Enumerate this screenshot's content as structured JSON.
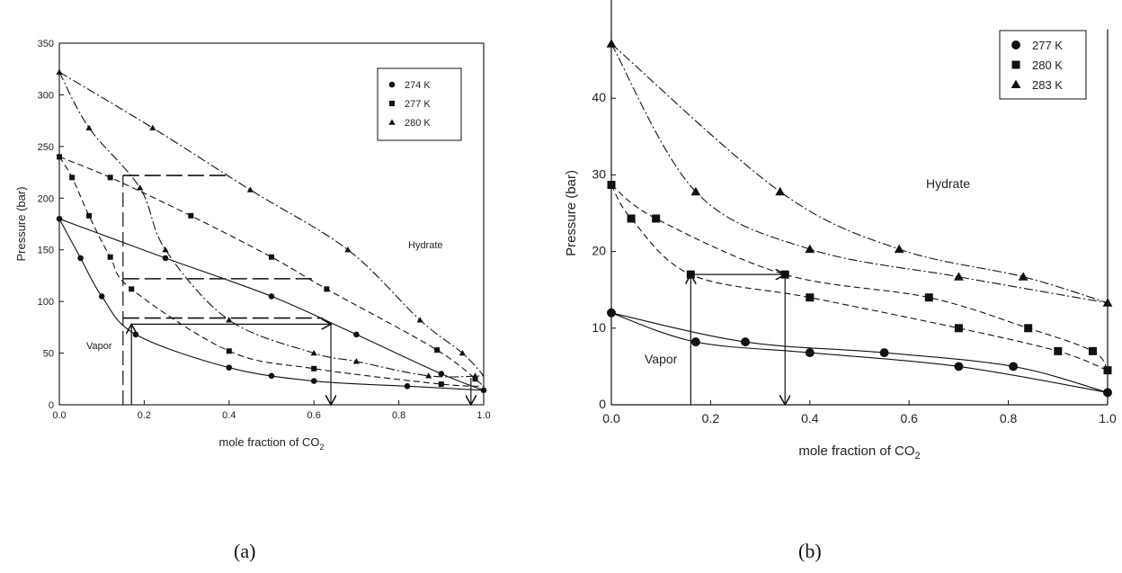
{
  "captions": {
    "a": "(a)",
    "b": "(b)"
  },
  "chart_data": [
    {
      "type": "line",
      "panel": "a",
      "title": "",
      "xlabel": "mole fraction of CO",
      "xlabel_sub": "2",
      "ylabel": "Pressure (bar)",
      "xlim": [
        0,
        1
      ],
      "ylim": [
        0,
        350
      ],
      "xticks": [
        "0.0",
        "0.2",
        "0.4",
        "0.6",
        "0.8",
        "1.0"
      ],
      "yticks": [
        "0",
        "50",
        "100",
        "150",
        "200",
        "250",
        "300",
        "350"
      ],
      "legend_position": "top-right",
      "region_labels": [
        "Hydrate",
        "Vapor"
      ],
      "series": [
        {
          "name": "274 K",
          "marker": "circle",
          "points": [
            [
              0.0,
              180
            ],
            [
              0.05,
              142
            ],
            [
              0.1,
              105
            ],
            [
              0.25,
              142
            ],
            [
              0.5,
              105
            ],
            [
              0.7,
              68
            ],
            [
              0.9,
              30
            ],
            [
              0.18,
              68
            ],
            [
              0.4,
              36
            ],
            [
              0.5,
              28
            ],
            [
              0.6,
              23
            ],
            [
              0.82,
              18
            ],
            [
              1.0,
              14
            ]
          ],
          "upper_curve": [
            [
              0.0,
              180
            ],
            [
              0.25,
              142
            ],
            [
              0.5,
              105
            ],
            [
              0.7,
              68
            ],
            [
              0.9,
              30
            ],
            [
              1.0,
              14
            ]
          ],
          "lower_curve": [
            [
              0.0,
              180
            ],
            [
              0.05,
              142
            ],
            [
              0.1,
              105
            ],
            [
              0.18,
              68
            ],
            [
              0.4,
              36
            ],
            [
              0.6,
              23
            ],
            [
              0.82,
              18
            ],
            [
              1.0,
              14
            ]
          ]
        },
        {
          "name": "277 K",
          "marker": "square",
          "points": [
            [
              0.0,
              240
            ],
            [
              0.03,
              220
            ],
            [
              0.07,
              183
            ],
            [
              0.12,
              143
            ],
            [
              0.17,
              112
            ],
            [
              0.4,
              52
            ],
            [
              0.6,
              35
            ],
            [
              0.9,
              20
            ],
            [
              0.12,
              220
            ],
            [
              0.31,
              183
            ],
            [
              0.5,
              143
            ],
            [
              0.63,
              112
            ],
            [
              0.89,
              53
            ],
            [
              0.98,
              25
            ]
          ],
          "upper_curve": [
            [
              0.0,
              240
            ],
            [
              0.12,
              220
            ],
            [
              0.31,
              183
            ],
            [
              0.5,
              143
            ],
            [
              0.63,
              112
            ],
            [
              0.89,
              53
            ],
            [
              1.0,
              18
            ]
          ],
          "lower_curve": [
            [
              0.0,
              240
            ],
            [
              0.03,
              220
            ],
            [
              0.07,
              183
            ],
            [
              0.12,
              143
            ],
            [
              0.17,
              112
            ],
            [
              0.4,
              52
            ],
            [
              0.6,
              35
            ],
            [
              0.9,
              20
            ],
            [
              1.0,
              18
            ]
          ]
        },
        {
          "name": "280 K",
          "marker": "triangle",
          "points": [
            [
              0.0,
              322
            ],
            [
              0.07,
              268
            ],
            [
              0.22,
              268
            ],
            [
              0.45,
              208
            ],
            [
              0.19,
              210
            ],
            [
              0.25,
              150
            ],
            [
              0.4,
              82
            ],
            [
              0.6,
              50
            ],
            [
              0.7,
              42
            ],
            [
              0.87,
              28
            ],
            [
              0.68,
              150
            ],
            [
              0.85,
              82
            ],
            [
              0.95,
              50
            ],
            [
              0.98,
              28
            ]
          ],
          "upper_curve": [
            [
              0.0,
              322
            ],
            [
              0.22,
              268
            ],
            [
              0.45,
              208
            ],
            [
              0.68,
              150
            ],
            [
              0.85,
              82
            ],
            [
              0.95,
              50
            ],
            [
              1.0,
              28
            ]
          ],
          "lower_curve": [
            [
              0.0,
              322
            ],
            [
              0.07,
              268
            ],
            [
              0.19,
              210
            ],
            [
              0.25,
              150
            ],
            [
              0.4,
              82
            ],
            [
              0.6,
              50
            ],
            [
              0.7,
              42
            ],
            [
              0.87,
              28
            ],
            [
              1.0,
              28
            ]
          ]
        }
      ],
      "tie_lines": [
        {
          "from": [
            0.15,
            222
          ],
          "to": [
            0.4,
            222
          ],
          "style": "dashed"
        },
        {
          "from": [
            0.15,
            122
          ],
          "to": [
            0.6,
            122
          ],
          "style": "dashed"
        },
        {
          "from": [
            0.15,
            84
          ],
          "to": [
            0.62,
            84
          ],
          "style": "dashed"
        },
        {
          "from": [
            0.17,
            78
          ],
          "to": [
            0.64,
            78
          ],
          "style": "solid",
          "arrow": "end"
        }
      ],
      "vertical_lines": [
        {
          "x": 0.15,
          "from": 0,
          "to": 222,
          "style": "dashed"
        },
        {
          "x": 0.17,
          "from": 0,
          "to": 78,
          "style": "solid",
          "arrow": "end"
        },
        {
          "x": 0.64,
          "from": 78,
          "to": 0,
          "style": "solid",
          "arrow": "end"
        },
        {
          "x": 0.97,
          "from": 26,
          "to": 0,
          "style": "solid",
          "arrow": "end"
        }
      ]
    },
    {
      "type": "line",
      "panel": "b",
      "title": "",
      "xlabel": "mole fraction of CO",
      "xlabel_sub": "2",
      "ylabel": "Pressure (bar)",
      "xlim": [
        0,
        1
      ],
      "ylim": [
        0,
        50
      ],
      "xticks": [
        "0.0",
        "0.2",
        "0.4",
        "0.6",
        "0.8",
        "1.0"
      ],
      "yticks": [
        "0",
        "10",
        "20",
        "30",
        "40"
      ],
      "legend_position": "top-right",
      "region_labels": [
        "Hydrate",
        "Vapor"
      ],
      "series": [
        {
          "name": "277 K",
          "marker": "circle",
          "points": [
            [
              0.0,
              12
            ],
            [
              0.17,
              8.2
            ],
            [
              0.27,
              8.2
            ],
            [
              0.4,
              6.8
            ],
            [
              0.55,
              6.8
            ],
            [
              0.7,
              5.0
            ],
            [
              0.81,
              5.0
            ],
            [
              1.0,
              1.6
            ]
          ],
          "upper_curve": [
            [
              0.0,
              12
            ],
            [
              0.27,
              8.2
            ],
            [
              0.55,
              6.8
            ],
            [
              0.81,
              5.0
            ],
            [
              1.0,
              1.6
            ]
          ],
          "lower_curve": [
            [
              0.0,
              12
            ],
            [
              0.17,
              8.2
            ],
            [
              0.4,
              6.8
            ],
            [
              0.7,
              5.0
            ],
            [
              1.0,
              1.6
            ]
          ]
        },
        {
          "name": "280 K",
          "marker": "square",
          "points": [
            [
              0.0,
              28.7
            ],
            [
              0.04,
              24.3
            ],
            [
              0.09,
              24.3
            ],
            [
              0.16,
              17.0
            ],
            [
              0.35,
              17.0
            ],
            [
              0.4,
              14.0
            ],
            [
              0.64,
              14.0
            ],
            [
              0.7,
              10.0
            ],
            [
              0.84,
              10.0
            ],
            [
              0.9,
              7.0
            ],
            [
              0.97,
              7.0
            ],
            [
              1.0,
              4.5
            ]
          ],
          "upper_curve": [
            [
              0.0,
              28.7
            ],
            [
              0.09,
              24.3
            ],
            [
              0.35,
              17.0
            ],
            [
              0.64,
              14.0
            ],
            [
              0.84,
              10.0
            ],
            [
              0.97,
              7.0
            ],
            [
              1.0,
              4.5
            ]
          ],
          "lower_curve": [
            [
              0.0,
              28.7
            ],
            [
              0.04,
              24.3
            ],
            [
              0.16,
              17.0
            ],
            [
              0.4,
              14.0
            ],
            [
              0.7,
              10.0
            ],
            [
              0.9,
              7.0
            ],
            [
              1.0,
              4.5
            ]
          ]
        },
        {
          "name": "283 K",
          "marker": "triangle",
          "points": [
            [
              0.0,
              47.1
            ],
            [
              0.17,
              27.8
            ],
            [
              0.34,
              27.8
            ],
            [
              0.4,
              20.3
            ],
            [
              0.58,
              20.3
            ],
            [
              0.7,
              16.7
            ],
            [
              0.83,
              16.7
            ],
            [
              1.0,
              13.3
            ]
          ],
          "upper_curve": [
            [
              0.0,
              47.1
            ],
            [
              0.34,
              27.8
            ],
            [
              0.58,
              20.3
            ],
            [
              0.83,
              16.7
            ],
            [
              1.0,
              13.3
            ]
          ],
          "lower_curve": [
            [
              0.0,
              47.1
            ],
            [
              0.17,
              27.8
            ],
            [
              0.4,
              20.3
            ],
            [
              0.7,
              16.7
            ],
            [
              1.0,
              13.3
            ]
          ]
        }
      ],
      "tie_lines": [
        {
          "from": [
            0.16,
            17.0
          ],
          "to": [
            0.35,
            17.0
          ],
          "style": "solid",
          "arrow": "end"
        }
      ],
      "vertical_lines": [
        {
          "x": 0.16,
          "from": 0,
          "to": 17.0,
          "style": "solid",
          "arrow": "end"
        },
        {
          "x": 0.35,
          "from": 17.0,
          "to": 0,
          "style": "solid",
          "arrow": "end"
        },
        {
          "x": 1.0,
          "from": 0,
          "to": 49,
          "style": "solid"
        }
      ]
    }
  ]
}
